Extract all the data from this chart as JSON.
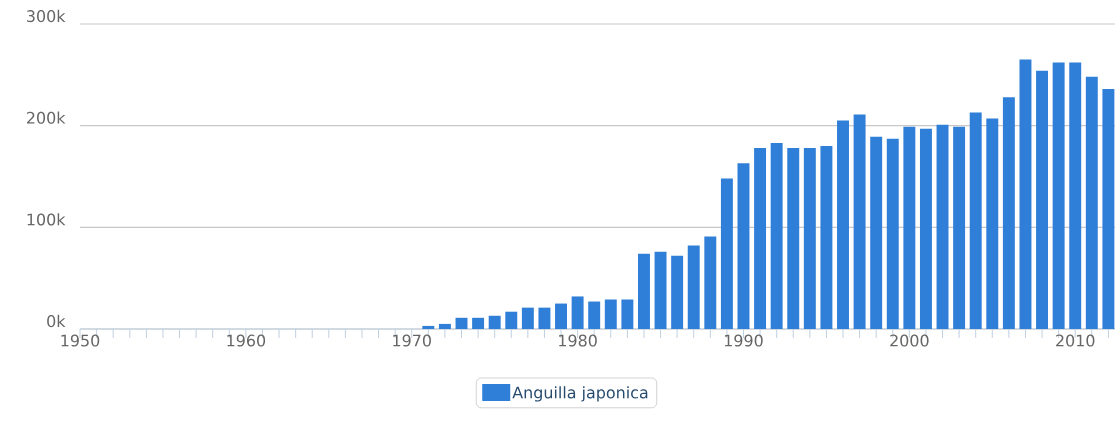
{
  "chart_data": {
    "type": "bar",
    "x": [
      1971,
      1972,
      1973,
      1974,
      1975,
      1976,
      1977,
      1978,
      1979,
      1980,
      1981,
      1982,
      1983,
      1984,
      1985,
      1986,
      1987,
      1988,
      1989,
      1990,
      1991,
      1992,
      1993,
      1994,
      1995,
      1996,
      1997,
      1998,
      1999,
      2000,
      2001,
      2002,
      2003,
      2004,
      2005,
      2006,
      2007,
      2008,
      2009,
      2010,
      2011,
      2012
    ],
    "series": [
      {
        "name": "Anguilla japonica",
        "color": "#2f7ed8",
        "values": [
          3000,
          5000,
          11000,
          11000,
          13000,
          17000,
          21000,
          21000,
          25000,
          32000,
          27000,
          29000,
          29000,
          74000,
          76000,
          72000,
          82000,
          91000,
          148000,
          163000,
          178000,
          183000,
          178000,
          178000,
          180000,
          205000,
          211000,
          189000,
          187000,
          199000,
          197000,
          201000,
          199000,
          213000,
          207000,
          228000,
          265000,
          254000,
          262000,
          262000,
          248000,
          236000
        ]
      }
    ],
    "xlim": [
      1950,
      2012.4
    ],
    "xticks": [
      {
        "value": 1950,
        "label": "1950"
      },
      {
        "value": 1951,
        "label": null
      },
      {
        "value": 1952,
        "label": null
      },
      {
        "value": 1953,
        "label": null
      },
      {
        "value": 1954,
        "label": null
      },
      {
        "value": 1955,
        "label": null
      },
      {
        "value": 1956,
        "label": null
      },
      {
        "value": 1957,
        "label": null
      },
      {
        "value": 1958,
        "label": null
      },
      {
        "value": 1959,
        "label": null
      },
      {
        "value": 1960,
        "label": "1960"
      },
      {
        "value": 1961,
        "label": null
      },
      {
        "value": 1962,
        "label": null
      },
      {
        "value": 1963,
        "label": null
      },
      {
        "value": 1964,
        "label": null
      },
      {
        "value": 1965,
        "label": null
      },
      {
        "value": 1966,
        "label": null
      },
      {
        "value": 1967,
        "label": null
      },
      {
        "value": 1968,
        "label": null
      },
      {
        "value": 1969,
        "label": null
      },
      {
        "value": 1970,
        "label": "1970"
      },
      {
        "value": 1971,
        "label": null
      },
      {
        "value": 1972,
        "label": null
      },
      {
        "value": 1973,
        "label": null
      },
      {
        "value": 1974,
        "label": null
      },
      {
        "value": 1975,
        "label": null
      },
      {
        "value": 1976,
        "label": null
      },
      {
        "value": 1977,
        "label": null
      },
      {
        "value": 1978,
        "label": null
      },
      {
        "value": 1979,
        "label": null
      },
      {
        "value": 1980,
        "label": "1980"
      },
      {
        "value": 1981,
        "label": null
      },
      {
        "value": 1982,
        "label": null
      },
      {
        "value": 1983,
        "label": null
      },
      {
        "value": 1984,
        "label": null
      },
      {
        "value": 1985,
        "label": null
      },
      {
        "value": 1986,
        "label": null
      },
      {
        "value": 1987,
        "label": null
      },
      {
        "value": 1988,
        "label": null
      },
      {
        "value": 1989,
        "label": null
      },
      {
        "value": 1990,
        "label": "1990"
      },
      {
        "value": 1991,
        "label": null
      },
      {
        "value": 1992,
        "label": null
      },
      {
        "value": 1993,
        "label": null
      },
      {
        "value": 1994,
        "label": null
      },
      {
        "value": 1995,
        "label": null
      },
      {
        "value": 1996,
        "label": null
      },
      {
        "value": 1997,
        "label": null
      },
      {
        "value": 1998,
        "label": null
      },
      {
        "value": 1999,
        "label": null
      },
      {
        "value": 2000,
        "label": "2000"
      },
      {
        "value": 2001,
        "label": null
      },
      {
        "value": 2002,
        "label": null
      },
      {
        "value": 2003,
        "label": null
      },
      {
        "value": 2004,
        "label": null
      },
      {
        "value": 2005,
        "label": null
      },
      {
        "value": 2006,
        "label": null
      },
      {
        "value": 2007,
        "label": null
      },
      {
        "value": 2008,
        "label": null
      },
      {
        "value": 2009,
        "label": null
      },
      {
        "value": 2010,
        "label": "2010"
      },
      {
        "value": 2011,
        "label": null
      },
      {
        "value": 2012,
        "label": null
      }
    ],
    "ylim": [
      0,
      300000
    ],
    "yticks": [
      {
        "value": 0,
        "label": "0k"
      },
      {
        "value": 100000,
        "label": "100k"
      },
      {
        "value": 200000,
        "label": "200k"
      },
      {
        "value": 300000,
        "label": "300k"
      }
    ],
    "grid": "y",
    "legend": "bottom"
  }
}
